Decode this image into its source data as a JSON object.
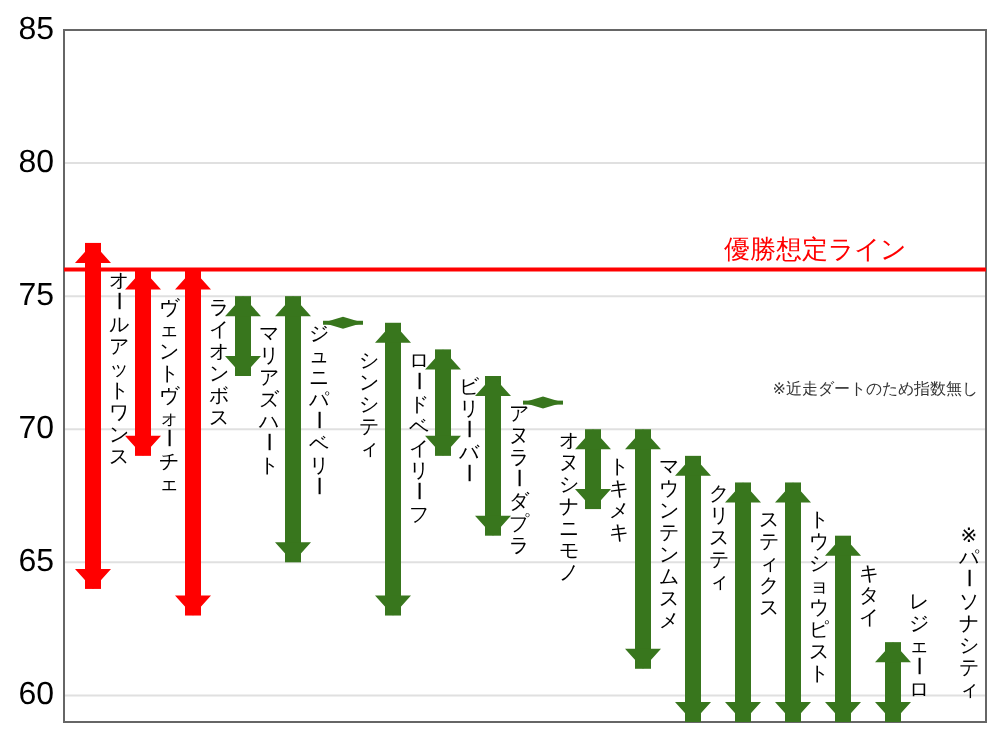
{
  "chart_data": {
    "type": "bar",
    "categories": [
      "オールアットワンス",
      "ヴェントヴォーチェ",
      "ライオンボス",
      "マリアズハート",
      "ジュニパーベリー",
      "シンシティ",
      "ロードベイリーフ",
      "ビリーバー",
      "アヌラーダプラ",
      "オヌシナニモノ",
      "トキメキ",
      "マウンテンムスメ",
      "クリスティ",
      "スティクス",
      "トウショウピスト",
      "キタイ",
      "レジェーロ",
      "※パーソナシティ"
    ],
    "base": [
      64,
      69,
      63,
      72,
      65,
      74,
      63,
      69,
      66,
      71,
      67,
      61,
      59,
      59,
      59,
      59,
      59,
      null
    ],
    "values": [
      13,
      7,
      13,
      3,
      10,
      0,
      11,
      4,
      6,
      0,
      3,
      9,
      10,
      9,
      9,
      7,
      3,
      null
    ],
    "colors": [
      "#ff0000",
      "#ff0000",
      "#ff0000",
      "#38761d",
      "#38761d",
      "#38761d",
      "#38761d",
      "#38761d",
      "#38761d",
      "#38761d",
      "#38761d",
      "#38761d",
      "#38761d",
      "#38761d",
      "#38761d",
      "#38761d",
      "#38761d",
      null
    ],
    "ylim": [
      59,
      85
    ],
    "yticks": [
      60,
      65,
      70,
      75,
      80,
      85
    ],
    "grid": "y",
    "ref_lines": [
      {
        "axis": "y",
        "value": 76,
        "label": "優勝想定ライン",
        "color": "#ff0000"
      }
    ],
    "annotations": [
      "※近走ダートのため指数無し"
    ]
  }
}
